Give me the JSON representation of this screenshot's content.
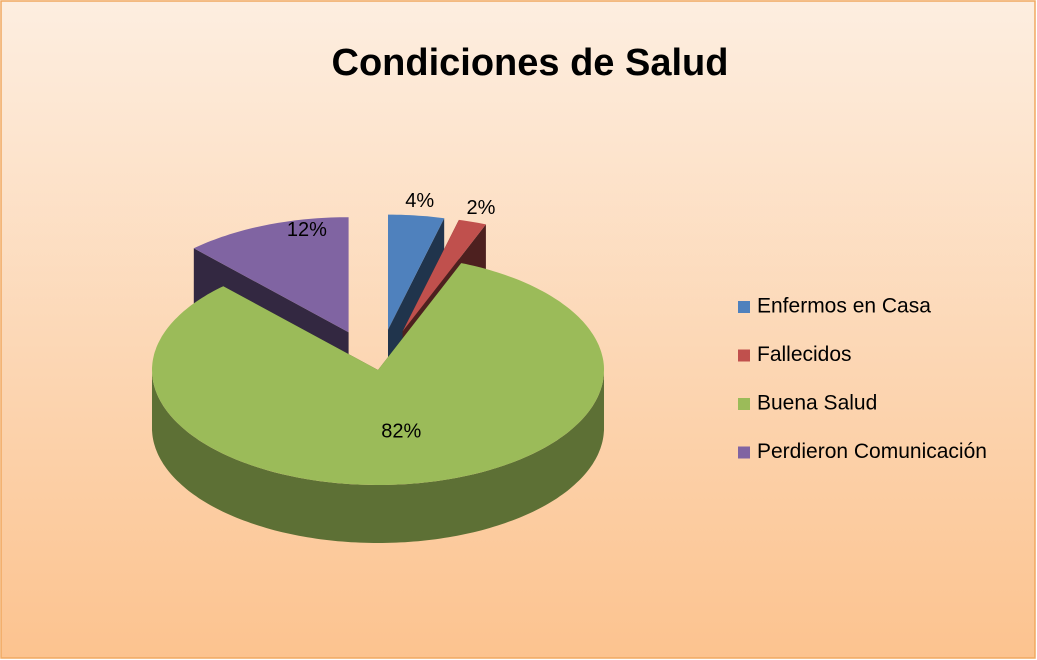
{
  "chart_data": {
    "type": "pie",
    "title": "Condiciones de Salud",
    "categories": [
      "Enfermos en Casa",
      "Fallecidos",
      "Buena Salud",
      "Perdieron Comunicación"
    ],
    "values": [
      4,
      2,
      82,
      12
    ],
    "value_labels": [
      "4%",
      "2%",
      "82%",
      "12%"
    ],
    "colors": [
      "#4f81bd",
      "#c0504d",
      "#9bbb59",
      "#8064a2"
    ],
    "exploded": [
      true,
      true,
      false,
      true
    ],
    "legend": "right"
  }
}
